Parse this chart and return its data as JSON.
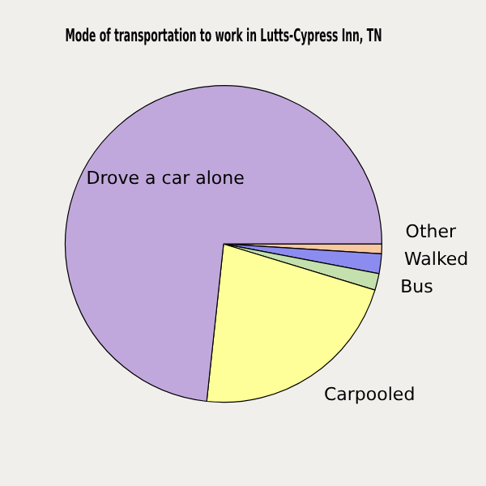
{
  "chart_data": {
    "type": "pie",
    "title": "Mode of transportation to work in Lutts-Cypress Inn, TN",
    "categories": [
      "Other",
      "Walked",
      "Bus",
      "Carpooled",
      "Drove a car alone"
    ],
    "values": [
      1,
      2,
      1.7,
      22,
      73.3
    ],
    "colors": [
      "#f8c8a0",
      "#8c8cf0",
      "#c4e0ac",
      "#ffff99",
      "#c0a8dc"
    ],
    "legend": false
  }
}
